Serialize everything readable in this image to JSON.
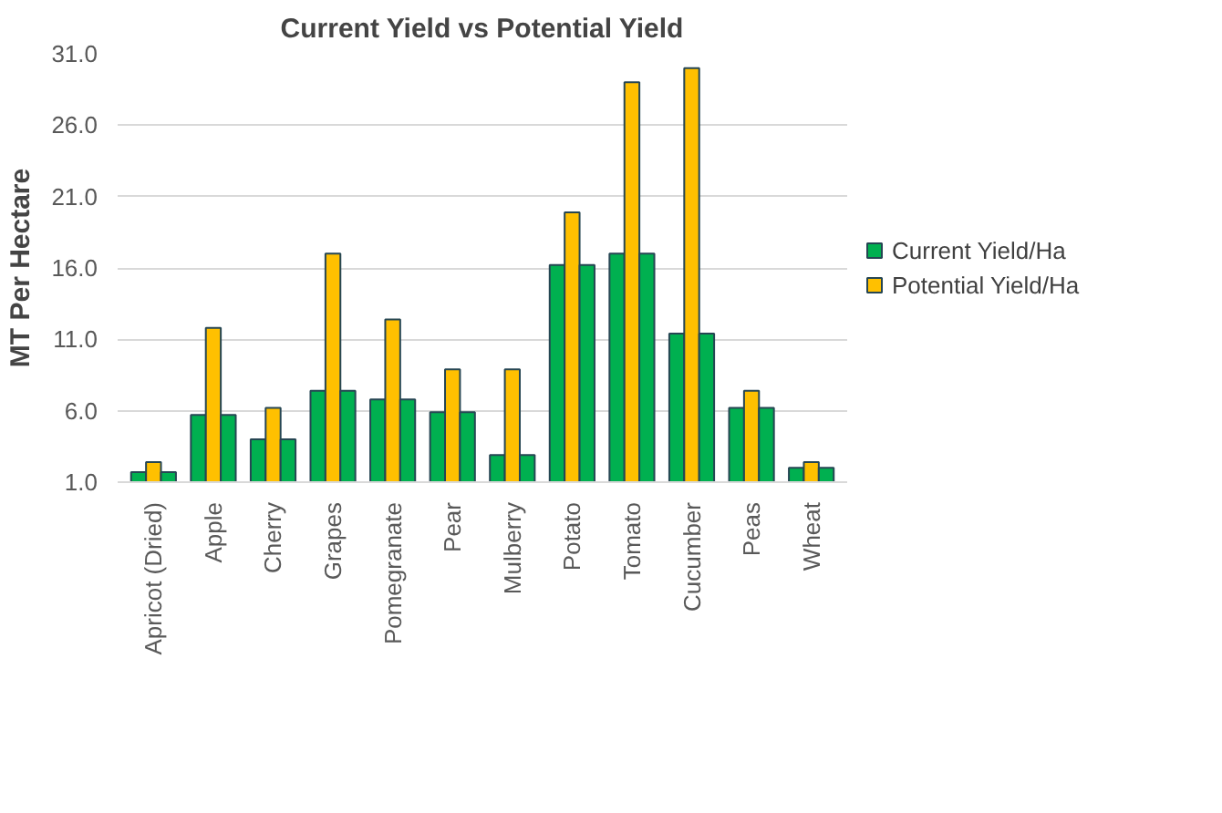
{
  "chart_data": {
    "type": "bar",
    "title": "Current Yield vs Potential Yield",
    "ylabel": "MT Per Hectare",
    "categories": [
      "Apricot (Dried)",
      "Apple",
      "Cherry",
      "Grapes",
      "Pomegranate",
      "Pear",
      "Mulberry",
      "Potato",
      "Tomato",
      "Cucumber",
      "Peas",
      "Wheat"
    ],
    "series": [
      {
        "name": "Current Yield/Ha",
        "color": "#00b050",
        "values": [
          1.7,
          5.7,
          4.0,
          7.4,
          6.8,
          5.9,
          2.9,
          16.2,
          17.0,
          11.4,
          6.2,
          2.0
        ]
      },
      {
        "name": "Potential Yield/Ha",
        "color": "#ffc000",
        "values": [
          2.4,
          11.8,
          6.2,
          17.0,
          12.4,
          8.9,
          8.9,
          19.9,
          29.0,
          30.0,
          7.4,
          2.4
        ]
      },
      {
        "color": "#00b050",
        "values": [
          1.7,
          5.7,
          4.0,
          7.4,
          6.8,
          5.9,
          2.9,
          16.2,
          17.0,
          11.4,
          6.2,
          2.0
        ]
      }
    ],
    "ylim": [
      1,
      31
    ],
    "yticks": [
      {
        "value": 1,
        "label": "1.0"
      },
      {
        "value": 6,
        "label": "6.0"
      },
      {
        "value": 11,
        "label": "11.0"
      },
      {
        "value": 16,
        "label": "16.0"
      },
      {
        "value": 21,
        "label": "21.0"
      },
      {
        "value": 26,
        "label": "26.0"
      },
      {
        "value": 31,
        "label": "31.0"
      }
    ],
    "grid": "y",
    "legend": "right"
  }
}
